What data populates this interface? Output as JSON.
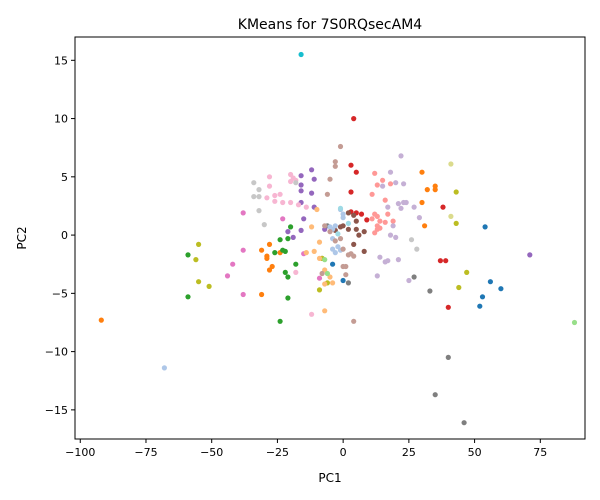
{
  "chart_data": {
    "type": "scatter",
    "title": "KMeans for 7S0RQsecAM4",
    "xlabel": "PC1",
    "ylabel": "PC2",
    "xlim": [
      -102,
      92
    ],
    "ylim": [
      -17.5,
      17
    ],
    "xticks": [
      -100,
      -75,
      -50,
      -25,
      0,
      25,
      50,
      75
    ],
    "yticks": [
      -15,
      -10,
      -5,
      0,
      5,
      10,
      15
    ],
    "grid": false,
    "legend": "none",
    "series": [
      {
        "color": "#1f77b4",
        "points": [
          [
            54,
            0.7
          ],
          [
            56,
            -4.0
          ],
          [
            60,
            -4.6
          ],
          [
            53,
            -5.3
          ],
          [
            52,
            -6.1
          ],
          [
            -4,
            -2.5
          ],
          [
            0,
            -3.9
          ]
        ]
      },
      {
        "color": "#ff7f0e",
        "points": [
          [
            -92,
            -7.3
          ],
          [
            -31,
            -5.1
          ],
          [
            -28,
            -0.8
          ],
          [
            -29,
            -1.8
          ],
          [
            -29,
            -2.0
          ],
          [
            -27,
            -2.7
          ],
          [
            -28,
            -3.0
          ],
          [
            -31,
            -1.3
          ],
          [
            -24,
            -1.5
          ],
          [
            30,
            5.4
          ],
          [
            35,
            4.2
          ],
          [
            35,
            3.9
          ],
          [
            32,
            3.9
          ],
          [
            30,
            2.8
          ],
          [
            31,
            0.8
          ]
        ]
      },
      {
        "color": "#2ca02c",
        "points": [
          [
            -59,
            -1.7
          ],
          [
            -59,
            -5.3
          ],
          [
            -24,
            -7.4
          ],
          [
            -21,
            -5.4
          ],
          [
            -23,
            -1.3
          ],
          [
            -22,
            -3.2
          ],
          [
            -21,
            -3.6
          ],
          [
            -24,
            -0.4
          ],
          [
            -21,
            -0.3
          ],
          [
            -20,
            0.7
          ],
          [
            -26,
            -1.5
          ],
          [
            -22,
            -1.4
          ],
          [
            -18,
            -2.5
          ]
        ]
      },
      {
        "color": "#d62728",
        "points": [
          [
            4,
            10.0
          ],
          [
            5,
            5.4
          ],
          [
            3,
            6.0
          ],
          [
            3,
            3.7
          ],
          [
            3,
            2.0
          ],
          [
            5,
            1.9
          ],
          [
            7,
            1.8
          ],
          [
            38,
            2.4
          ],
          [
            37,
            -2.2
          ],
          [
            39,
            -2.2
          ],
          [
            40,
            -6.2
          ],
          [
            9,
            1.3
          ]
        ]
      },
      {
        "color": "#9467bd",
        "points": [
          [
            -12,
            5.6
          ],
          [
            -11,
            4.8
          ],
          [
            -16,
            5.1
          ],
          [
            -16,
            4.3
          ],
          [
            -16,
            3.8
          ],
          [
            -16,
            2.8
          ],
          [
            -12,
            3.6
          ],
          [
            -11,
            2.4
          ],
          [
            -15,
            1.4
          ],
          [
            -16,
            0.4
          ],
          [
            -21,
            0.3
          ],
          [
            -19,
            -0.2
          ],
          [
            -7,
            0.5
          ],
          [
            71,
            -1.7
          ]
        ]
      },
      {
        "color": "#8c564b",
        "points": [
          [
            2,
            1.9
          ],
          [
            4,
            1.7
          ],
          [
            5,
            1.2
          ],
          [
            6,
            0.0
          ],
          [
            8,
            0.3
          ],
          [
            8,
            -1.4
          ],
          [
            4,
            -0.8
          ],
          [
            5,
            0.5
          ],
          [
            0,
            0.8
          ],
          [
            2,
            0.5
          ],
          [
            -3,
            0.4
          ],
          [
            -1,
            0.7
          ]
        ]
      },
      {
        "color": "#e377c2",
        "points": [
          [
            -38,
            1.9
          ],
          [
            -38,
            -1.3
          ],
          [
            -38,
            -5.1
          ],
          [
            -44,
            -3.5
          ],
          [
            -42,
            -2.5
          ],
          [
            -23,
            1.4
          ],
          [
            -15,
            -1.6
          ],
          [
            -9,
            -3.7
          ]
        ]
      },
      {
        "color": "#7f7f7f",
        "points": [
          [
            35,
            -13.7
          ],
          [
            40,
            -10.5
          ],
          [
            46,
            -16.1
          ],
          [
            2,
            -4.1
          ],
          [
            -8,
            -2.0
          ],
          [
            -6,
            0.8
          ],
          [
            33,
            -4.8
          ],
          [
            27,
            -3.6
          ]
        ]
      },
      {
        "color": "#bcbd22",
        "points": [
          [
            -55,
            -0.8
          ],
          [
            -56,
            -2.1
          ],
          [
            -55,
            -4.0
          ],
          [
            -51,
            -4.4
          ],
          [
            -8,
            -2.0
          ],
          [
            -9,
            -4.7
          ],
          [
            -6,
            -4.1
          ],
          [
            44,
            -4.5
          ],
          [
            47,
            -3.2
          ],
          [
            43,
            3.7
          ],
          [
            43,
            1.0
          ]
        ]
      },
      {
        "color": "#17becf",
        "points": [
          [
            -16,
            15.5
          ]
        ]
      },
      {
        "color": "#aec7e8",
        "points": [
          [
            -68,
            -11.4
          ],
          [
            -4,
            -1.2
          ],
          [
            -3,
            -1.5
          ],
          [
            -1,
            -1.3
          ],
          [
            -2,
            -1.0
          ],
          [
            -5,
            0.7
          ],
          [
            -4,
            0.5
          ],
          [
            -3,
            0.8
          ],
          [
            -4,
            -0.3
          ],
          [
            -1,
            2.2
          ],
          [
            0,
            1.8
          ],
          [
            0,
            1.5
          ]
        ]
      },
      {
        "color": "#ffbb78",
        "points": [
          [
            -14,
            -1.5
          ],
          [
            -9,
            -2.0
          ],
          [
            -11,
            -1.4
          ],
          [
            -7,
            -3.0
          ],
          [
            -5,
            -3.6
          ],
          [
            -4,
            -4.1
          ],
          [
            -7,
            -4.2
          ],
          [
            -7,
            -6.5
          ],
          [
            -12,
            0.7
          ],
          [
            -10,
            2.2
          ],
          [
            -9,
            -0.6
          ]
        ]
      },
      {
        "color": "#98df8a",
        "points": [
          [
            88,
            -7.5
          ],
          [
            -6,
            -3.3
          ],
          [
            -7,
            -2.1
          ]
        ]
      },
      {
        "color": "#ff9896",
        "points": [
          [
            12,
            5.3
          ],
          [
            11,
            1.4
          ],
          [
            12,
            1.8
          ],
          [
            13,
            1.6
          ],
          [
            14,
            1.2
          ],
          [
            14,
            0.6
          ],
          [
            17,
            1.8
          ],
          [
            13,
            0.8
          ],
          [
            16,
            1.1
          ],
          [
            12,
            0.2
          ],
          [
            13,
            0.5
          ],
          [
            19,
            1.2
          ],
          [
            16,
            3.0
          ],
          [
            15,
            4.7
          ],
          [
            13,
            4.3
          ],
          [
            11,
            3.5
          ],
          [
            18,
            4.4
          ]
        ]
      },
      {
        "color": "#c5b0d5",
        "points": [
          [
            15,
            4.2
          ],
          [
            18,
            5.4
          ],
          [
            22,
            6.8
          ],
          [
            20,
            4.5
          ],
          [
            23,
            4.4
          ],
          [
            21,
            2.7
          ],
          [
            23,
            2.8
          ],
          [
            22,
            2.3
          ],
          [
            24,
            2.8
          ],
          [
            29,
            1.5
          ],
          [
            27,
            2.4
          ],
          [
            18,
            0.0
          ],
          [
            17,
            2.4
          ],
          [
            20,
            -0.2
          ],
          [
            19,
            0.8
          ],
          [
            16,
            -2.3
          ],
          [
            14,
            -1.9
          ],
          [
            17,
            -2.2
          ],
          [
            21,
            -2.1
          ],
          [
            13,
            -3.5
          ],
          [
            25,
            -3.9
          ]
        ]
      },
      {
        "color": "#c49c94",
        "points": [
          [
            -3,
            5.9
          ],
          [
            -3,
            6.3
          ],
          [
            -1,
            7.6
          ],
          [
            -5,
            4.8
          ],
          [
            -6,
            3.5
          ],
          [
            -7,
            0.8
          ],
          [
            -5,
            0.3
          ],
          [
            -1,
            -0.3
          ],
          [
            0,
            -1.2
          ],
          [
            1,
            -2.7
          ],
          [
            2,
            -1.7
          ],
          [
            3,
            -1.6
          ],
          [
            1,
            -3.4
          ],
          [
            0,
            -2.7
          ],
          [
            4,
            -1.8
          ],
          [
            4,
            -7.4
          ],
          [
            -8,
            -3.3
          ],
          [
            -3,
            -0.5
          ]
        ]
      },
      {
        "color": "#f7b6d2",
        "points": [
          [
            -28,
            5.0
          ],
          [
            -28,
            4.2
          ],
          [
            -20,
            5.2
          ],
          [
            -19,
            4.9
          ],
          [
            -20,
            4.6
          ],
          [
            -18,
            4.7
          ],
          [
            -24,
            3.5
          ],
          [
            -26,
            3.4
          ],
          [
            -26,
            2.9
          ],
          [
            -23,
            2.8
          ],
          [
            -20,
            2.8
          ],
          [
            -17,
            2.6
          ],
          [
            -14,
            2.4
          ],
          [
            -29,
            3.2
          ],
          [
            -18,
            -3.2
          ],
          [
            -12,
            -6.8
          ]
        ]
      },
      {
        "color": "#c7c7c7",
        "points": [
          [
            -34,
            4.5
          ],
          [
            -32,
            3.9
          ],
          [
            -34,
            3.3
          ],
          [
            -32,
            3.3
          ],
          [
            -32,
            2.1
          ],
          [
            -18,
            4.5
          ],
          [
            -30,
            0.9
          ],
          [
            26,
            -0.4
          ],
          [
            28,
            -1.2
          ]
        ]
      },
      {
        "color": "#dbdb8d",
        "points": [
          [
            41,
            6.1
          ],
          [
            41,
            1.6
          ]
        ]
      },
      {
        "color": "#9edae5",
        "points": [
          [
            -1,
            2.3
          ],
          [
            -2,
            0.1
          ],
          [
            2,
            1.0
          ]
        ]
      }
    ]
  }
}
